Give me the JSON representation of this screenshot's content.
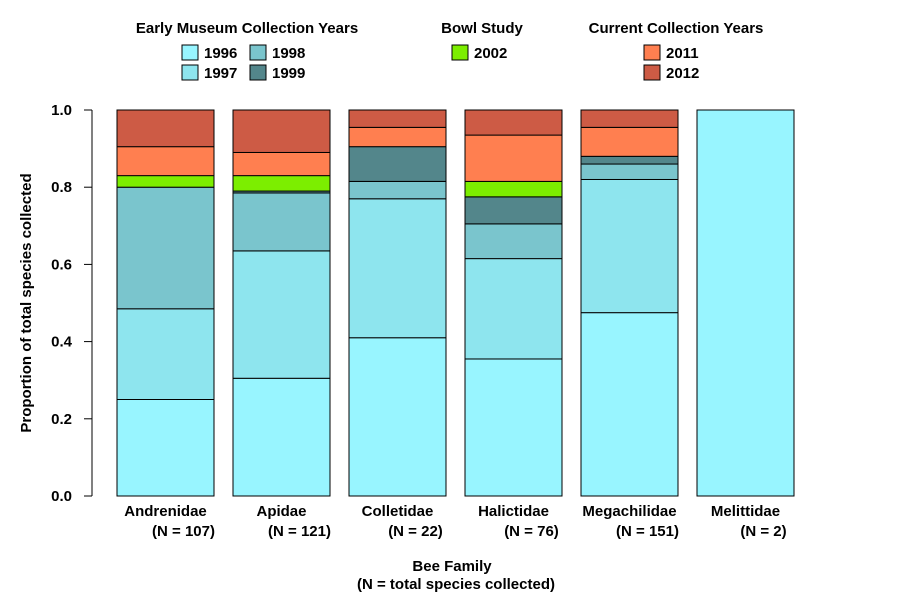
{
  "chart_data": {
    "type": "bar",
    "stacked": true,
    "title": "",
    "xlabel": "Bee Family",
    "xlabel_sub": "(N = total species collected)",
    "ylabel": "Proportion of total species collected",
    "ylim": [
      0,
      1.0
    ],
    "yticks": [
      "0.0",
      "0.2",
      "0.4",
      "0.6",
      "0.8",
      "1.0"
    ],
    "categories": [
      "Andrenidae",
      "Apidae",
      "Colletidae",
      "Halictidae",
      "Megachilidae",
      "Melittidae"
    ],
    "category_n": [
      "(N = 107)",
      "(N = 121)",
      "(N = 22)",
      "(N = 76)",
      "(N = 151)",
      "(N = 2)"
    ],
    "series": [
      {
        "name": "1996",
        "color": "#98F5FF",
        "values": [
          0.25,
          0.305,
          0.41,
          0.355,
          0.475,
          1.0
        ]
      },
      {
        "name": "1997",
        "color": "#8EE5EE",
        "values": [
          0.235,
          0.33,
          0.36,
          0.26,
          0.345,
          0.0
        ]
      },
      {
        "name": "1998",
        "color": "#7AC5CD",
        "values": [
          0.315,
          0.15,
          0.045,
          0.09,
          0.04,
          0.0
        ]
      },
      {
        "name": "1999",
        "color": "#53868B",
        "values": [
          0.0,
          0.005,
          0.09,
          0.07,
          0.02,
          0.0
        ]
      },
      {
        "name": "2002",
        "color": "#7CEE00",
        "values": [
          0.03,
          0.04,
          0.0,
          0.04,
          0.0,
          0.0
        ]
      },
      {
        "name": "2011",
        "color": "#FF7F50",
        "values": [
          0.075,
          0.06,
          0.05,
          0.12,
          0.075,
          0.0
        ]
      },
      {
        "name": "2012",
        "color": "#CD5B45",
        "values": [
          0.095,
          0.11,
          0.045,
          0.065,
          0.045,
          0.0
        ]
      }
    ],
    "legend": {
      "placement": "top",
      "groups": [
        {
          "title": "Early Museum Collection Years",
          "entries": [
            "1996",
            "1997",
            "1998",
            "1999"
          ]
        },
        {
          "title": "Bowl Study",
          "entries": [
            "2002"
          ]
        },
        {
          "title": "Current Collection Years",
          "entries": [
            "2011",
            "2012"
          ]
        }
      ]
    }
  }
}
